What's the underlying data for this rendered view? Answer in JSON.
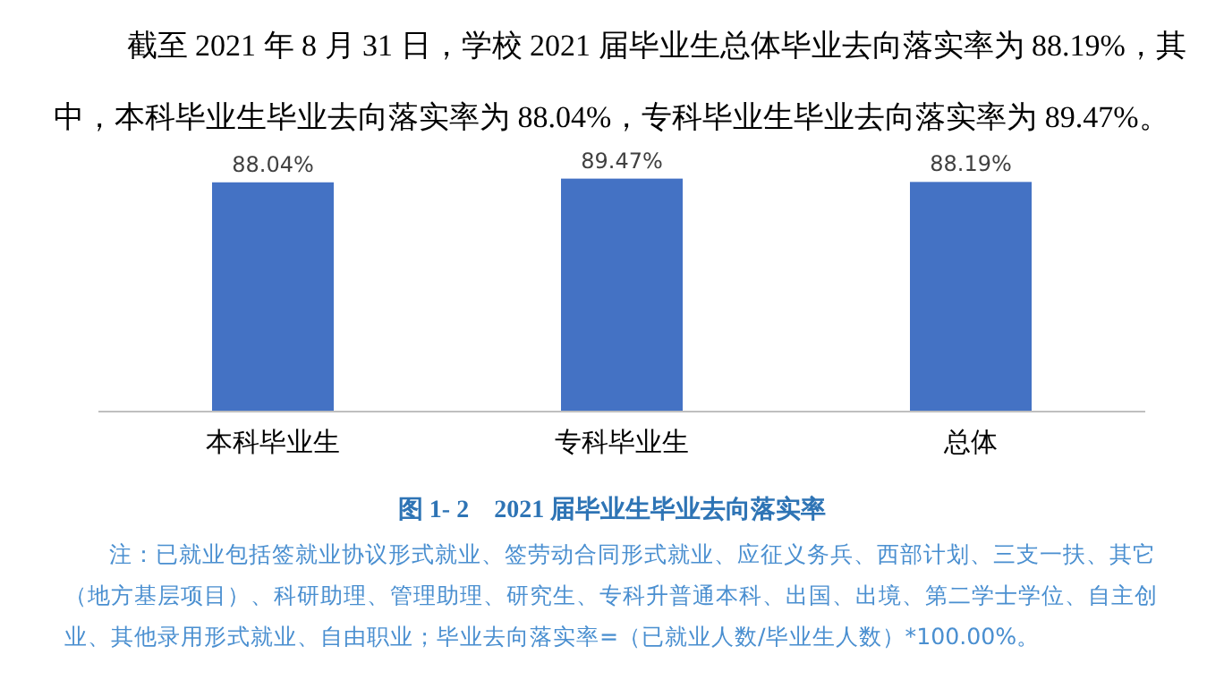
{
  "chart_data": {
    "type": "bar",
    "title": "图 1- 2　2021 届毕业生毕业去向落实率",
    "categories": [
      "本科毕业生",
      "专科毕业生",
      "总体"
    ],
    "series": [
      {
        "color": "#4472c4",
        "values": [
          88.04,
          89.47,
          88.19
        ],
        "value_labels": [
          "88.04%",
          "89.47%",
          "88.19%"
        ]
      }
    ],
    "annotations": [
      "截至 2021 年 8 月 31 日，学校 2021 届毕业生总体毕业去向落实率为 88.19%，其中，本科毕业生毕业去向落实率为 88.04%，专科毕业生毕业去向落实率为 89.47%。",
      "注：已就业包括签就业协议形式就业、签劳动合同形式就业、应征义务兵、西部计划、三支一扶、其它（地方基层项目）、科研助理、管理助理、研究生、专科升普通本科、出国、出境、第二学士学位、自主创业、其他录用形式就业、自由职业；毕业去向落实率=（已就业人数/毕业生人数）*100.00%。"
    ]
  }
}
